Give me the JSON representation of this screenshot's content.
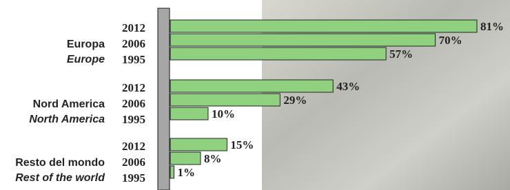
{
  "chart_data": {
    "type": "bar",
    "orientation": "horizontal",
    "color": "#8fd17f",
    "groups": [
      {
        "labels": [
          "Europa",
          "Europe"
        ],
        "years": [
          "2012",
          "2006",
          "1995"
        ],
        "values": [
          81,
          70,
          57
        ],
        "value_labels": [
          "81%",
          "70%",
          "57%"
        ]
      },
      {
        "labels": [
          "Nord America",
          "North America"
        ],
        "years": [
          "2012",
          "2006",
          "1995"
        ],
        "values": [
          43,
          29,
          10
        ],
        "value_labels": [
          "43%",
          "29%",
          "10%"
        ]
      },
      {
        "labels": [
          "Resto del mondo",
          "Rest of the world"
        ],
        "years": [
          "2012",
          "2006",
          "1995"
        ],
        "values": [
          15,
          8,
          1
        ],
        "value_labels": [
          "15%",
          "8%",
          "1%"
        ]
      }
    ]
  }
}
